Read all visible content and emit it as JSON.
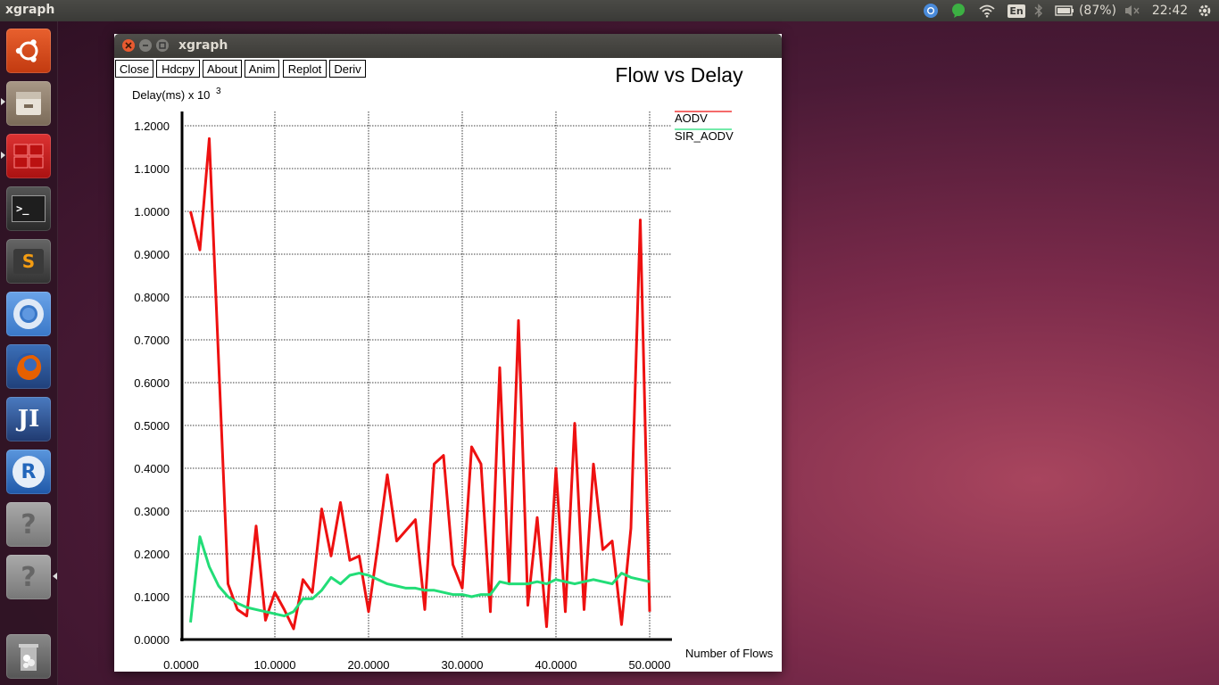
{
  "top_panel": {
    "title": "xgraph",
    "language": "En",
    "battery": "(87%)",
    "clock": "22:42",
    "icons": [
      "chromium-icon",
      "chat-icon",
      "wifi-icon",
      "keyboard-icon",
      "bluetooth-icon",
      "battery-icon",
      "volume-mute-icon",
      "gear-icon"
    ]
  },
  "launcher": {
    "items": [
      {
        "name": "ubuntu-logo-icon",
        "color": "#dd4814"
      },
      {
        "name": "files-icon",
        "color": "#8a7a6a"
      },
      {
        "name": "workspace-switcher-icon",
        "color": "#c0282c"
      },
      {
        "name": "terminal-icon",
        "color": "#2d2d2d"
      },
      {
        "name": "sublime-text-icon",
        "color": "#4a4a4a"
      },
      {
        "name": "chromium-icon",
        "color": "#4a8bdb"
      },
      {
        "name": "firefox-icon",
        "color": "#e66000"
      },
      {
        "name": "intellij-icon",
        "color": "#3b6aa8"
      },
      {
        "name": "r-language-icon",
        "color": "#2266bb"
      },
      {
        "name": "unknown-app-icon",
        "color": "#888888"
      },
      {
        "name": "unknown-app-icon",
        "color": "#888888"
      },
      {
        "name": "trash-icon",
        "color": "#7a7a7a"
      }
    ],
    "glyphs": {
      "unknown": "?",
      "intellij": "JI",
      "r": "R",
      "sublime": "S",
      "terminal": ">_"
    }
  },
  "window": {
    "title": "xgraph",
    "toolbar": [
      "Close",
      "Hdcpy",
      "About",
      "Anim",
      "Replot",
      "Deriv"
    ]
  },
  "chart_data": {
    "type": "line",
    "title": "Flow vs Delay",
    "ylabel": "Delay(ms) x 10",
    "ylabel_exponent": "3",
    "xlabel": "Number of Flows",
    "xlim": [
      0,
      50
    ],
    "ylim": [
      0,
      1.2
    ],
    "grid": true,
    "legend_position": "top-right",
    "x_ticks": [
      0,
      10,
      20,
      30,
      40,
      50
    ],
    "x_tick_labels": [
      "0.0000",
      "10.0000",
      "20.0000",
      "30.0000",
      "40.0000",
      "50.0000"
    ],
    "y_ticks": [
      0,
      0.1,
      0.2,
      0.3,
      0.4,
      0.5,
      0.6,
      0.7,
      0.8,
      0.9,
      1.0,
      1.1,
      1.2
    ],
    "y_tick_labels": [
      "0.0000",
      "0.1000",
      "0.2000",
      "0.3000",
      "0.4000",
      "0.5000",
      "0.6000",
      "0.7000",
      "0.8000",
      "0.9000",
      "1.0000",
      "1.1000",
      "1.2000"
    ],
    "series": [
      {
        "name": "AODV",
        "color": "#ee1111",
        "x": [
          1,
          2,
          3,
          4,
          5,
          6,
          7,
          8,
          9,
          10,
          11,
          12,
          13,
          14,
          15,
          16,
          17,
          18,
          19,
          20,
          21,
          22,
          23,
          24,
          25,
          26,
          27,
          28,
          29,
          30,
          31,
          32,
          33,
          34,
          35,
          36,
          37,
          38,
          39,
          40,
          41,
          42,
          43,
          44,
          45,
          46,
          47,
          48,
          49,
          50
        ],
        "y": [
          1.0,
          0.91,
          1.17,
          0.65,
          0.13,
          0.07,
          0.055,
          0.265,
          0.045,
          0.11,
          0.07,
          0.025,
          0.14,
          0.11,
          0.305,
          0.195,
          0.32,
          0.185,
          0.195,
          0.065,
          0.22,
          0.385,
          0.23,
          0.255,
          0.28,
          0.07,
          0.41,
          0.43,
          0.175,
          0.12,
          0.45,
          0.41,
          0.065,
          0.635,
          0.13,
          0.745,
          0.08,
          0.285,
          0.03,
          0.4,
          0.065,
          0.505,
          0.07,
          0.41,
          0.21,
          0.23,
          0.035,
          0.26,
          0.98,
          0.065
        ]
      },
      {
        "name": "SIR_AODV",
        "color": "#22dd77",
        "x": [
          1,
          2,
          3,
          4,
          5,
          6,
          7,
          8,
          9,
          10,
          11,
          12,
          13,
          14,
          15,
          16,
          17,
          18,
          19,
          20,
          21,
          22,
          23,
          24,
          25,
          26,
          27,
          28,
          29,
          30,
          31,
          32,
          33,
          34,
          35,
          36,
          37,
          38,
          39,
          40,
          41,
          42,
          43,
          44,
          45,
          46,
          47,
          48,
          49,
          50
        ],
        "y": [
          0.04,
          0.24,
          0.17,
          0.125,
          0.1,
          0.085,
          0.075,
          0.07,
          0.065,
          0.06,
          0.055,
          0.065,
          0.095,
          0.095,
          0.115,
          0.145,
          0.13,
          0.15,
          0.155,
          0.15,
          0.14,
          0.13,
          0.125,
          0.12,
          0.12,
          0.115,
          0.115,
          0.11,
          0.105,
          0.105,
          0.1,
          0.105,
          0.105,
          0.135,
          0.13,
          0.13,
          0.13,
          0.135,
          0.13,
          0.14,
          0.135,
          0.13,
          0.135,
          0.14,
          0.135,
          0.13,
          0.155,
          0.145,
          0.14,
          0.135
        ]
      }
    ]
  }
}
